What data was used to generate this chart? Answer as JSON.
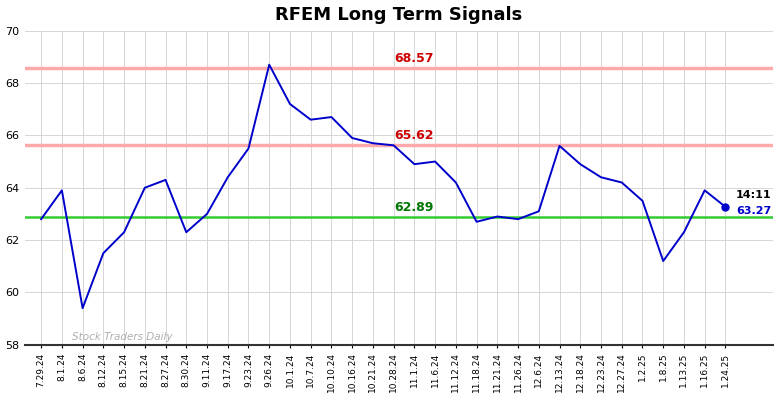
{
  "title": "RFEM Long Term Signals",
  "ylim": [
    58,
    70
  ],
  "yticks": [
    58,
    60,
    62,
    64,
    66,
    68,
    70
  ],
  "line_color": "#0000cc",
  "background_color": "#ffffff",
  "grid_color": "#d0d0d0",
  "hline_green": 62.89,
  "hline_green_color": "#33cc33",
  "hline_red1": 65.62,
  "hline_red2": 68.57,
  "hline_red_line_color": "#ffaaaa",
  "label_68_57_color": "#cc0000",
  "label_65_62_color": "#cc0000",
  "label_62_89_color": "#007700",
  "label_68_57": "68.57",
  "label_65_62": "65.62",
  "label_62_89": "62.89",
  "label_time": "14:11",
  "label_price": "63.27",
  "watermark": "Stock Traders Daily",
  "dates": [
    "7.29.24",
    "8.1.24",
    "8.6.24",
    "8.12.24",
    "8.15.24",
    "8.21.24",
    "8.27.24",
    "8.30.24",
    "9.11.24",
    "9.17.24",
    "9.23.24",
    "9.26.24",
    "10.1.24",
    "10.7.24",
    "10.10.24",
    "10.16.24",
    "10.21.24",
    "10.28.24",
    "11.1.24",
    "11.6.24",
    "11.12.24",
    "11.18.24",
    "11.21.24",
    "11.26.24",
    "12.6.24",
    "12.13.24",
    "12.18.24",
    "12.23.24",
    "12.27.24",
    "1.2.25",
    "1.8.25",
    "1.13.25",
    "1.16.25",
    "1.24.25"
  ],
  "values": [
    62.8,
    63.9,
    59.4,
    61.5,
    62.3,
    64.0,
    64.3,
    62.3,
    63.0,
    64.4,
    65.5,
    68.7,
    67.2,
    66.6,
    66.7,
    65.9,
    65.7,
    65.62,
    64.9,
    65.0,
    64.2,
    62.7,
    62.9,
    62.8,
    63.1,
    65.6,
    64.9,
    64.4,
    64.2,
    63.5,
    61.2,
    62.3,
    63.9,
    63.27
  ],
  "label_68_57_xidx": 18,
  "label_65_62_xidx": 18,
  "label_62_89_xidx": 18,
  "figsize": [
    7.84,
    3.98
  ],
  "dpi": 100
}
